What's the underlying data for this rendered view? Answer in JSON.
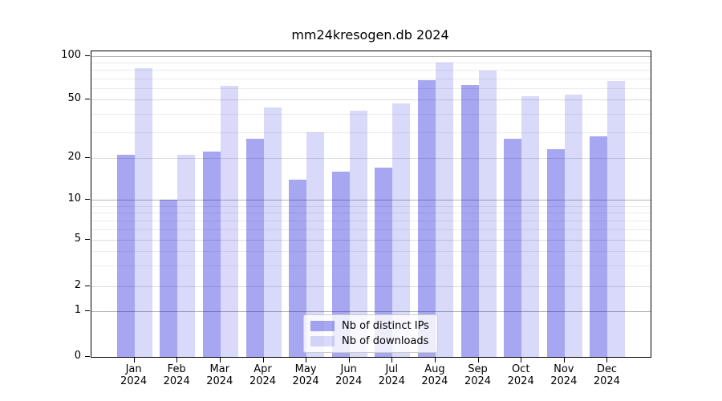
{
  "chart_data": {
    "type": "bar",
    "title": "mm24kresogen.db 2024",
    "categories": [
      "Jan 2024",
      "Feb 2024",
      "Mar 2024",
      "Apr 2024",
      "May 2024",
      "Jun 2024",
      "Jul 2024",
      "Aug 2024",
      "Sep 2024",
      "Oct 2024",
      "Nov 2024",
      "Dec 2024"
    ],
    "series": [
      {
        "name": "Nb of distinct IPs",
        "color": "rgba(0,0,215,0.35)",
        "values": [
          21,
          10,
          22,
          27,
          14,
          16,
          17,
          68,
          63,
          27,
          23,
          28
        ]
      },
      {
        "name": "Nb of downloads",
        "color": "rgba(0,0,215,0.15)",
        "values": [
          82,
          21,
          62,
          44,
          30,
          42,
          47,
          90,
          79,
          53,
          54,
          67
        ]
      }
    ],
    "xlabel": "",
    "ylabel": "",
    "ylim": [
      0,
      100
    ],
    "yaxis": {
      "scale": "log-like-with-zero",
      "tick_labels": [
        100,
        50,
        20,
        10,
        5,
        2,
        1,
        0
      ],
      "gridlines": {
        "major": [
          1,
          10,
          100
        ],
        "labeled": [
          2,
          5,
          20,
          50
        ],
        "minor": [
          3,
          4,
          6,
          7,
          8,
          9,
          30,
          40,
          60,
          70,
          80,
          90
        ]
      }
    },
    "grid": true,
    "legend_position": "lower center inside"
  },
  "colors": {
    "bar_ips": "rgba(0,0,215,0.35)",
    "bar_downloads": "rgba(0,0,215,0.15)",
    "grid_major": "#b4b4b4",
    "grid_labeled": "#dcdcdc",
    "grid_minor": "#ececec",
    "spine": "#000000",
    "legend_border": "#cccccc"
  }
}
